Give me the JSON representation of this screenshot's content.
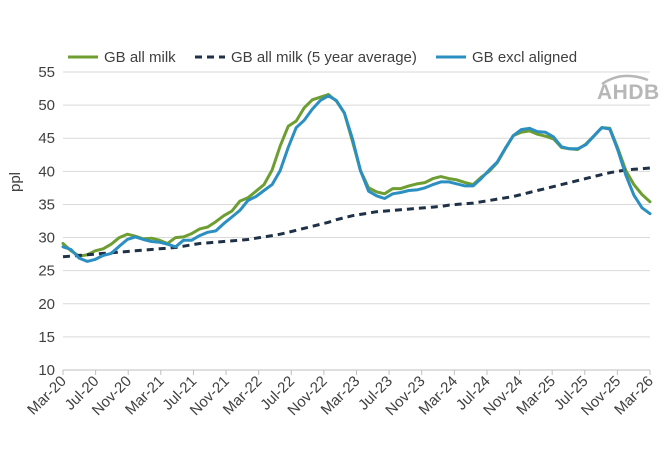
{
  "chart_data": {
    "type": "line",
    "ylabel": "ppl",
    "ylim": [
      10,
      55
    ],
    "yticks": [
      "10",
      "15",
      "20",
      "25",
      "30",
      "35",
      "40",
      "45",
      "50",
      "55"
    ],
    "xticks": [
      "Mar-20",
      "Jul-20",
      "Nov-20",
      "Mar-21",
      "Jul-21",
      "Nov-21",
      "Mar-22",
      "Jul-22",
      "Nov-22",
      "Mar-23",
      "Jul-23",
      "Nov-23",
      "Mar-24",
      "Jul-24",
      "Nov-24",
      "Mar-25",
      "Jul-25",
      "Nov-25",
      "Mar-26"
    ],
    "x_start": "Mar-20",
    "x_end": "Mar-26",
    "legend_position": "top",
    "grid": "horizontal",
    "logo": "AHDB",
    "series": [
      {
        "name": "GB all milk",
        "color": "#6e9e32",
        "style": "solid",
        "values": [
          29.1,
          28.0,
          27.2,
          27.4,
          28.0,
          28.3,
          29.0,
          30.0,
          30.5,
          30.2,
          29.8,
          29.9,
          29.6,
          29.1,
          30.0,
          30.1,
          30.6,
          31.3,
          31.6,
          32.4,
          33.3,
          34.0,
          35.5,
          36.0,
          37.0,
          38.0,
          40.2,
          43.8,
          46.8,
          47.6,
          49.6,
          50.8,
          51.2,
          51.6,
          50.6,
          48.8,
          44.5,
          40.1,
          37.5,
          36.9,
          36.6,
          37.4,
          37.4,
          37.8,
          38.1,
          38.3,
          38.9,
          39.2,
          38.9,
          38.7,
          38.3,
          38.0,
          39.1,
          40.0,
          41.3,
          43.4,
          45.4,
          45.9,
          46.1,
          45.6,
          45.3,
          44.9,
          43.6,
          43.4,
          43.3,
          44.1,
          45.3,
          46.6,
          46.5,
          43.5,
          40.1,
          38.0,
          36.5,
          35.4
        ]
      },
      {
        "name": "GB all milk (5 year average)",
        "color": "#1f3146",
        "style": "dashed",
        "values": [
          27.1,
          27.2,
          27.3,
          27.4,
          27.5,
          27.6,
          27.7,
          27.8,
          27.9,
          28.0,
          28.1,
          28.2,
          28.3,
          28.4,
          28.5,
          28.7,
          28.9,
          29.1,
          29.2,
          29.3,
          29.4,
          29.5,
          29.6,
          29.7,
          29.9,
          30.1,
          30.3,
          30.5,
          30.8,
          31.1,
          31.4,
          31.7,
          32.0,
          32.3,
          32.7,
          33.0,
          33.3,
          33.5,
          33.7,
          33.9,
          34.0,
          34.1,
          34.2,
          34.3,
          34.4,
          34.5,
          34.6,
          34.7,
          34.9,
          35.0,
          35.1,
          35.2,
          35.4,
          35.6,
          35.8,
          36.0,
          36.2,
          36.5,
          36.8,
          37.1,
          37.4,
          37.7,
          38.0,
          38.3,
          38.6,
          38.9,
          39.2,
          39.5,
          39.8,
          40.0,
          40.2,
          40.3,
          40.4,
          40.5
        ]
      },
      {
        "name": "GB excl aligned",
        "color": "#2b8fc1",
        "style": "solid",
        "values": [
          28.6,
          28.2,
          26.9,
          26.4,
          26.7,
          27.3,
          27.6,
          28.7,
          29.7,
          30.1,
          29.7,
          29.4,
          29.3,
          29.0,
          28.6,
          29.6,
          29.6,
          30.3,
          30.8,
          31.0,
          32.1,
          33.1,
          34.1,
          35.6,
          36.2,
          37.1,
          38.0,
          40.1,
          43.6,
          46.6,
          47.7,
          49.4,
          50.7,
          51.4,
          50.7,
          48.8,
          44.9,
          40.1,
          37.0,
          36.3,
          35.9,
          36.6,
          36.8,
          37.1,
          37.2,
          37.5,
          38.0,
          38.4,
          38.4,
          38.1,
          37.8,
          37.8,
          38.9,
          40.2,
          41.4,
          43.5,
          45.4,
          46.3,
          46.5,
          46.0,
          45.9,
          45.2,
          43.7,
          43.4,
          43.4,
          44.0,
          45.3,
          46.6,
          46.4,
          43.2,
          39.4,
          36.4,
          34.5,
          33.6
        ]
      }
    ]
  }
}
